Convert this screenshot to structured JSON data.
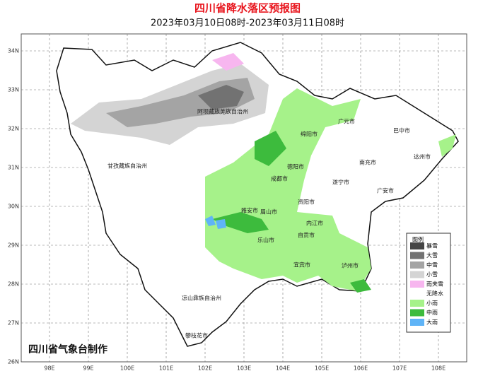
{
  "header": {
    "title": "四川省降水落区预报图",
    "subtitle": "2023年03月10日08时-2023年03月11日08时"
  },
  "axes": {
    "lat_labels": [
      "34N",
      "33N",
      "32N",
      "31N",
      "30N",
      "29N",
      "28N",
      "27N",
      "26N"
    ],
    "lon_labels": [
      "98E",
      "99E",
      "100E",
      "101E",
      "102E",
      "103E",
      "104E",
      "105E",
      "106E",
      "107E",
      "108E"
    ]
  },
  "cities": [
    {
      "label": "阿坝藏族羌族自治州"
    },
    {
      "label": "甘孜藏族自治州"
    },
    {
      "label": "凉山彝族自治州"
    },
    {
      "label": "攀枝花市"
    },
    {
      "label": "绵阳市"
    },
    {
      "label": "广元市"
    },
    {
      "label": "巴中市"
    },
    {
      "label": "达州市"
    },
    {
      "label": "南充市"
    },
    {
      "label": "德阳市"
    },
    {
      "label": "成都市"
    },
    {
      "label": "遂宁市"
    },
    {
      "label": "广安市"
    },
    {
      "label": "资阳市"
    },
    {
      "label": "雅安市"
    },
    {
      "label": "眉山市"
    },
    {
      "label": "内江市"
    },
    {
      "label": "自贡市"
    },
    {
      "label": "乐山市"
    },
    {
      "label": "宜宾市"
    },
    {
      "label": "泸州市"
    }
  ],
  "legend": {
    "title": "图例",
    "items": [
      {
        "label": "暴雪",
        "color": "#454545"
      },
      {
        "label": "大雪",
        "color": "#727272"
      },
      {
        "label": "中雪",
        "color": "#a4a4a4"
      },
      {
        "label": "小雪",
        "color": "#d4d4d4"
      },
      {
        "label": "雨夹雪",
        "color": "#f7b6ef"
      },
      {
        "label": "无降水",
        "color": null
      },
      {
        "label": "小雨",
        "color": "#a6f28a"
      },
      {
        "label": "中雨",
        "color": "#3dbb3d"
      },
      {
        "label": "大雨",
        "color": "#5fb4f7"
      }
    ]
  },
  "footer": {
    "text": "四川省气象台制作"
  }
}
